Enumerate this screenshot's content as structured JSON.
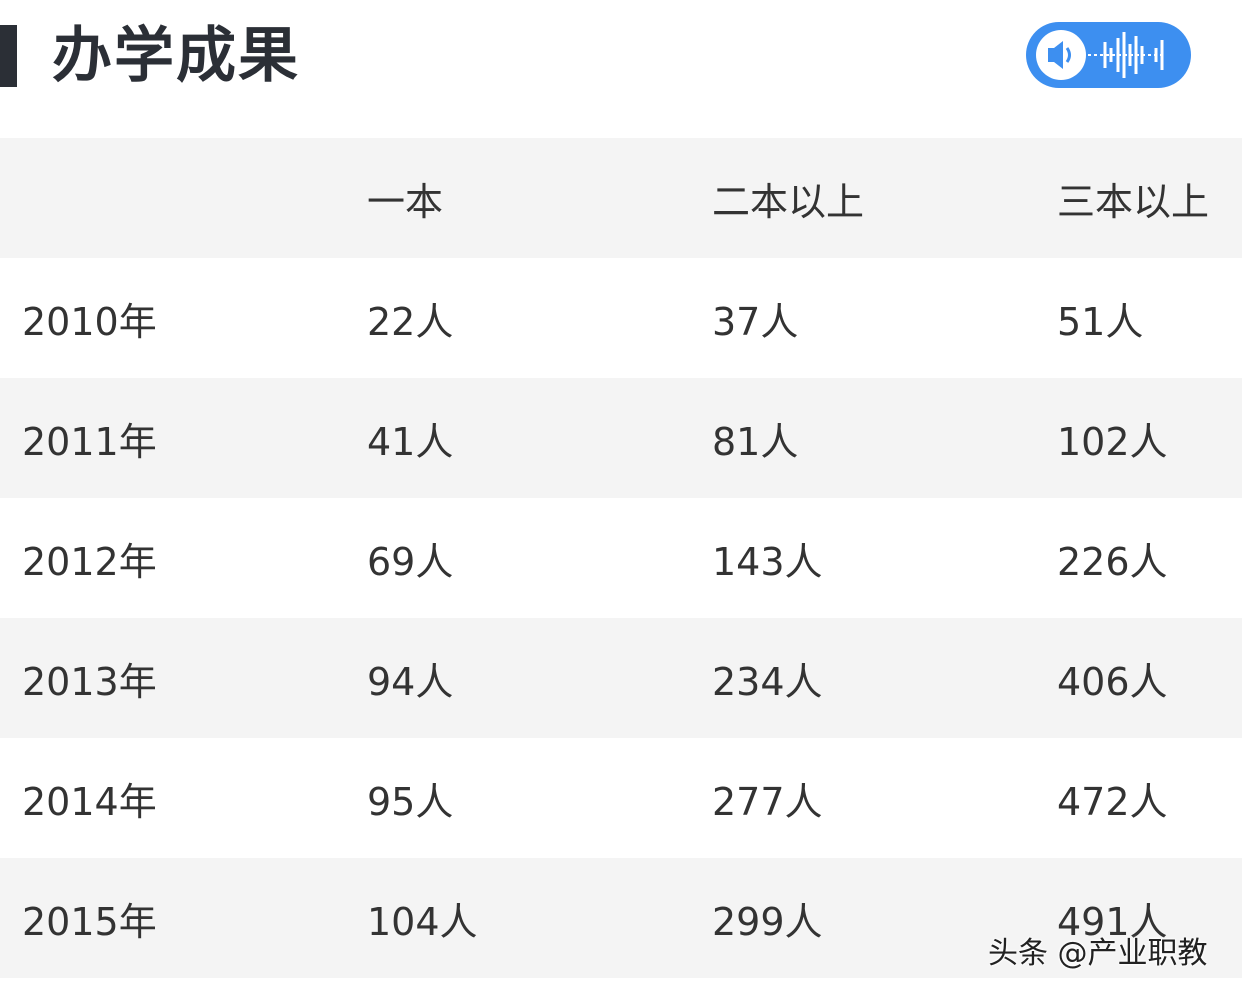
{
  "header": {
    "title": "办学成果",
    "audio_button": "speaker-waveform-icon",
    "accent": "#3d8ff0"
  },
  "table": {
    "headers": [
      "",
      "一本",
      "二本以上",
      "三本以上"
    ],
    "rows": [
      [
        "2010年",
        "22人",
        "37人",
        "51人"
      ],
      [
        "2011年",
        "41人",
        "81人",
        "102人"
      ],
      [
        "2012年",
        "69人",
        "143人",
        "226人"
      ],
      [
        "2013年",
        "94人",
        "234人",
        "406人"
      ],
      [
        "2014年",
        "95人",
        "277人",
        "472人"
      ],
      [
        "2015年",
        "104人",
        "299人",
        "491人"
      ]
    ]
  },
  "watermark": "头条 @产业职教"
}
